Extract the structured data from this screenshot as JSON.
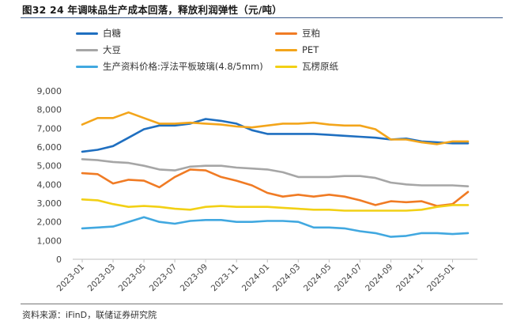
{
  "header": {
    "title": "图32 24 年调味品生产成本回落，释放利润弹性（元/吨）"
  },
  "footer": {
    "source": "资料来源：iFinD，联储证券研究院"
  },
  "colors": {
    "rule": "#3a5a8a",
    "axis": "#bfbfbf"
  },
  "chart_data": {
    "type": "line",
    "title": "",
    "xlabel": "",
    "ylabel": "",
    "ylim": [
      0,
      9000
    ],
    "yticks": [
      0,
      1000,
      2000,
      3000,
      4000,
      5000,
      6000,
      7000,
      8000,
      9000
    ],
    "ytick_labels": [
      "0",
      "1,000",
      "2,000",
      "3,000",
      "4,000",
      "5,000",
      "6,000",
      "7,000",
      "8,000",
      "9,000"
    ],
    "xticks": [
      "2023-01",
      "2023-03",
      "2023-05",
      "2023-07",
      "2023-09",
      "2023-11",
      "2024-01",
      "2024-03",
      "2024-05",
      "2024-07",
      "2024-09",
      "2024-11",
      "2025-01"
    ],
    "x": [
      "2023-01",
      "2023-02",
      "2023-03",
      "2023-04",
      "2023-05",
      "2023-06",
      "2023-07",
      "2023-08",
      "2023-09",
      "2023-10",
      "2023-11",
      "2023-12",
      "2024-01",
      "2024-02",
      "2024-03",
      "2024-04",
      "2024-05",
      "2024-06",
      "2024-07",
      "2024-08",
      "2024-09",
      "2024-10",
      "2024-11",
      "2024-12",
      "2025-01",
      "2025-02"
    ],
    "grid": false,
    "legend_position": "top",
    "series": [
      {
        "name": "白糖",
        "color": "#1f6fc0",
        "values": [
          5750,
          5850,
          6050,
          6500,
          6950,
          7150,
          7150,
          7250,
          7500,
          7400,
          7250,
          6900,
          6700,
          6700,
          6700,
          6700,
          6650,
          6600,
          6550,
          6500,
          6400,
          6450,
          6300,
          6250,
          6200,
          6200
        ]
      },
      {
        "name": "豆粕",
        "color": "#f07b24",
        "values": [
          4600,
          4550,
          4050,
          4250,
          4200,
          3850,
          4400,
          4800,
          4750,
          4400,
          4200,
          3950,
          3550,
          3350,
          3450,
          3350,
          3450,
          3350,
          3150,
          2900,
          3100,
          3050,
          3100,
          2850,
          2950,
          3600
        ]
      },
      {
        "name": "大豆",
        "color": "#a6a6a6",
        "values": [
          5350,
          5300,
          5200,
          5150,
          5000,
          4800,
          4750,
          4950,
          5000,
          5000,
          4900,
          4850,
          4800,
          4650,
          4400,
          4400,
          4400,
          4450,
          4450,
          4350,
          4100,
          4000,
          3950,
          3950,
          3950,
          3900
        ]
      },
      {
        "name": "PET",
        "color": "#f3a51b",
        "values": [
          7200,
          7550,
          7550,
          7850,
          7550,
          7250,
          7250,
          7300,
          7250,
          7200,
          7100,
          7050,
          7150,
          7250,
          7250,
          7300,
          7200,
          7150,
          7150,
          6950,
          6400,
          6400,
          6250,
          6150,
          6300,
          6300
        ]
      },
      {
        "name": "生产资料价格:浮法平板玻璃(4.8/5mm)",
        "color": "#41a8e0",
        "values": [
          1650,
          1700,
          1750,
          2000,
          2250,
          2000,
          1900,
          2050,
          2100,
          2100,
          2000,
          2000,
          2050,
          2050,
          2000,
          1700,
          1700,
          1650,
          1500,
          1400,
          1200,
          1250,
          1400,
          1400,
          1350,
          1400
        ]
      },
      {
        "name": "瓦楞原纸",
        "color": "#f2d015",
        "values": [
          3200,
          3150,
          2950,
          2800,
          2850,
          2800,
          2700,
          2650,
          2800,
          2850,
          2800,
          2800,
          2800,
          2750,
          2700,
          2650,
          2650,
          2600,
          2600,
          2600,
          2600,
          2600,
          2650,
          2800,
          2900,
          2900
        ]
      }
    ]
  }
}
